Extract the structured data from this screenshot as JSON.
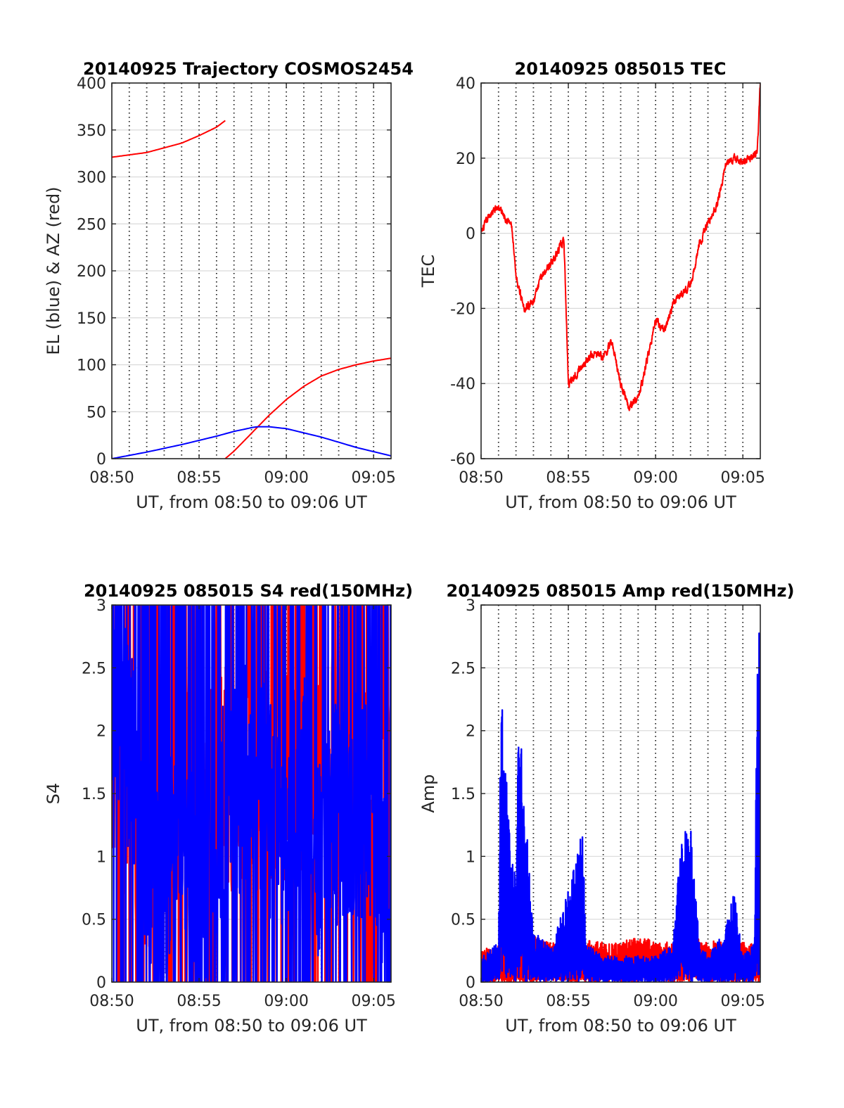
{
  "colors": {
    "red": "#ff0000",
    "blue": "#0000ff",
    "grid": "#d9d9d9",
    "vgrid": "#222222",
    "axis": "#262626"
  },
  "chart_data": [
    {
      "type": "line",
      "title": "20140925 Trajectory COSMOS2454",
      "xlabel": "UT, from 08:50 to 09:06 UT",
      "ylabel": "EL (blue) & AZ (red)",
      "xlim": [
        "08:50",
        "09:06"
      ],
      "ylim": [
        0,
        400
      ],
      "xticks": [
        "08:50",
        "08:55",
        "09:00",
        "09:05"
      ],
      "yticks": [
        "0",
        "50",
        "100",
        "150",
        "200",
        "250",
        "300",
        "350",
        "400"
      ],
      "grid": "horizontal solid, vertical dotted every minute",
      "series": [
        {
          "color": "red",
          "kind": "smooth",
          "x": [
            "08:50",
            "08:52",
            "08:54",
            "08:55",
            "08:56",
            "08:56:30"
          ],
          "y": [
            321,
            326,
            336,
            344,
            353,
            360
          ]
        },
        {
          "color": "red",
          "kind": "smooth",
          "x": [
            "08:56:30",
            "08:57",
            "08:58",
            "08:59",
            "09:00",
            "09:01",
            "09:02",
            "09:03",
            "09:04",
            "09:05",
            "09:06"
          ],
          "y": [
            0,
            8,
            27,
            46,
            63,
            77,
            88,
            95,
            100,
            104,
            107
          ]
        },
        {
          "color": "blue",
          "kind": "smooth",
          "x": [
            "08:50",
            "08:52",
            "08:54",
            "08:56",
            "08:57",
            "08:58",
            "08:58:20",
            "08:59",
            "09:00",
            "09:02",
            "09:04",
            "09:06"
          ],
          "y": [
            0,
            7,
            15,
            24,
            29,
            33,
            34,
            34,
            32,
            23,
            12,
            3
          ]
        }
      ]
    },
    {
      "type": "line",
      "title": "20140925 085015 TEC",
      "xlabel": "UT, from 08:50 to 09:06 UT",
      "ylabel": "TEC",
      "xlim": [
        "08:50",
        "09:06"
      ],
      "ylim": [
        -60,
        40
      ],
      "xticks": [
        "08:50",
        "08:55",
        "09:00",
        "09:05"
      ],
      "yticks": [
        "-60",
        "-40",
        "-20",
        "0",
        "20",
        "40"
      ],
      "grid": "horizontal solid, vertical dotted every minute",
      "series": [
        {
          "color": "red",
          "kind": "noisy",
          "x": [
            "08:50",
            "08:50:30",
            "08:51",
            "08:51:45",
            "08:52",
            "08:52:30",
            "08:53",
            "08:53:30",
            "08:54",
            "08:54:45",
            "08:55",
            "08:55:30",
            "08:56",
            "08:56:30",
            "08:57",
            "08:57:30",
            "08:58",
            "08:58:30",
            "08:59",
            "08:59:30",
            "09:00",
            "09:00:30",
            "09:01",
            "09:01:30",
            "09:02",
            "09:02:30",
            "09:03",
            "09:03:30",
            "09:04",
            "09:04:30",
            "09:05",
            "09:05:30",
            "09:05:50",
            "09:06"
          ],
          "y": [
            0,
            5,
            7,
            2,
            -12,
            -20,
            -18,
            -11,
            -8,
            -2,
            -40,
            -37,
            -34,
            -32,
            -33,
            -29,
            -40,
            -46,
            -44,
            -34,
            -23,
            -26,
            -19,
            -16,
            -14,
            -3,
            3,
            7,
            18,
            20,
            19,
            20,
            22,
            40
          ]
        }
      ]
    },
    {
      "type": "line",
      "title": "20140925 085015 S4 red(150MHz)",
      "xlabel": "UT, from 08:50 to 09:06 UT",
      "ylabel": "S4",
      "xlim": [
        "08:50",
        "09:06"
      ],
      "ylim": [
        0,
        3
      ],
      "xticks": [
        "08:50",
        "08:55",
        "09:00",
        "09:05"
      ],
      "yticks": [
        "0",
        "0.5",
        "1",
        "1.5",
        "2",
        "2.5",
        "3"
      ],
      "grid": "horizontal solid, vertical dotted every minute",
      "series": [
        {
          "color": "red",
          "kind": "s4",
          "x": [
            "08:50",
            "08:51",
            "08:52",
            "08:53",
            "08:54",
            "08:55",
            "08:56",
            "08:57",
            "08:58",
            "08:59",
            "09:00",
            "09:01",
            "09:02",
            "09:03",
            "09:04",
            "09:05",
            "09:06"
          ],
          "y": [
            2.0,
            1.4,
            1.0,
            1.6,
            1.7,
            1.5,
            1.7,
            1.6,
            1.8,
            1.7,
            1.6,
            1.5,
            1.6,
            1.8,
            1.7,
            1.5,
            1.5
          ]
        },
        {
          "color": "blue",
          "kind": "s4",
          "x": [
            "08:50",
            "08:51",
            "08:52",
            "08:53",
            "08:54",
            "08:55",
            "08:56",
            "08:57",
            "08:58",
            "08:59",
            "09:00",
            "09:01",
            "09:02",
            "09:03",
            "09:04",
            "09:05",
            "09:05:30",
            "09:06"
          ],
          "y": [
            2.5,
            1.9,
            1.0,
            0.8,
            1.2,
            0.5,
            1.2,
            1.5,
            1.7,
            1.4,
            1.2,
            1.6,
            0.9,
            1.4,
            1.4,
            1.4,
            1.0,
            0.25
          ]
        }
      ]
    },
    {
      "type": "line",
      "title": "20140925 085015 Amp red(150MHz)",
      "xlabel": "UT, from 08:50 to 09:06 UT",
      "ylabel": "Amp",
      "xlim": [
        "08:50",
        "09:06"
      ],
      "ylim": [
        0,
        3
      ],
      "xticks": [
        "08:50",
        "08:55",
        "09:00",
        "09:05"
      ],
      "yticks": [
        "0",
        "0.5",
        "1",
        "1.5",
        "2",
        "2.5",
        "3"
      ],
      "grid": "horizontal solid, vertical dotted every minute",
      "series": [
        {
          "color": "red",
          "kind": "amp",
          "x": [
            "08:50",
            "08:52",
            "08:53",
            "08:54",
            "08:55",
            "08:56",
            "08:57",
            "08:58",
            "08:59",
            "09:00",
            "09:01",
            "09:02",
            "09:03",
            "09:04",
            "09:05",
            "09:06"
          ],
          "y": [
            0.25,
            0.3,
            0.35,
            0.3,
            0.28,
            0.32,
            0.3,
            0.3,
            0.35,
            0.32,
            0.3,
            0.35,
            0.3,
            0.35,
            0.3,
            0.3
          ]
        },
        {
          "color": "blue",
          "kind": "amp",
          "x": [
            "08:50",
            "08:51",
            "08:51:10",
            "08:51:40",
            "08:52",
            "08:52:10",
            "08:53",
            "08:54",
            "08:55",
            "08:55:50",
            "08:56",
            "08:57",
            "08:58",
            "08:59",
            "09:00",
            "09:01",
            "09:01:30",
            "09:02",
            "09:02:30",
            "09:03",
            "09:04",
            "09:04:30",
            "09:05",
            "09:05:40",
            "09:05:50",
            "09:06"
          ],
          "y": [
            0.2,
            0.3,
            2.5,
            1.0,
            0.8,
            2.1,
            0.4,
            0.25,
            0.7,
            1.2,
            0.3,
            0.2,
            0.2,
            0.2,
            0.2,
            0.3,
            1.2,
            1.25,
            0.3,
            0.2,
            0.4,
            0.7,
            0.2,
            0.3,
            2.9,
            2.5
          ]
        }
      ]
    }
  ]
}
